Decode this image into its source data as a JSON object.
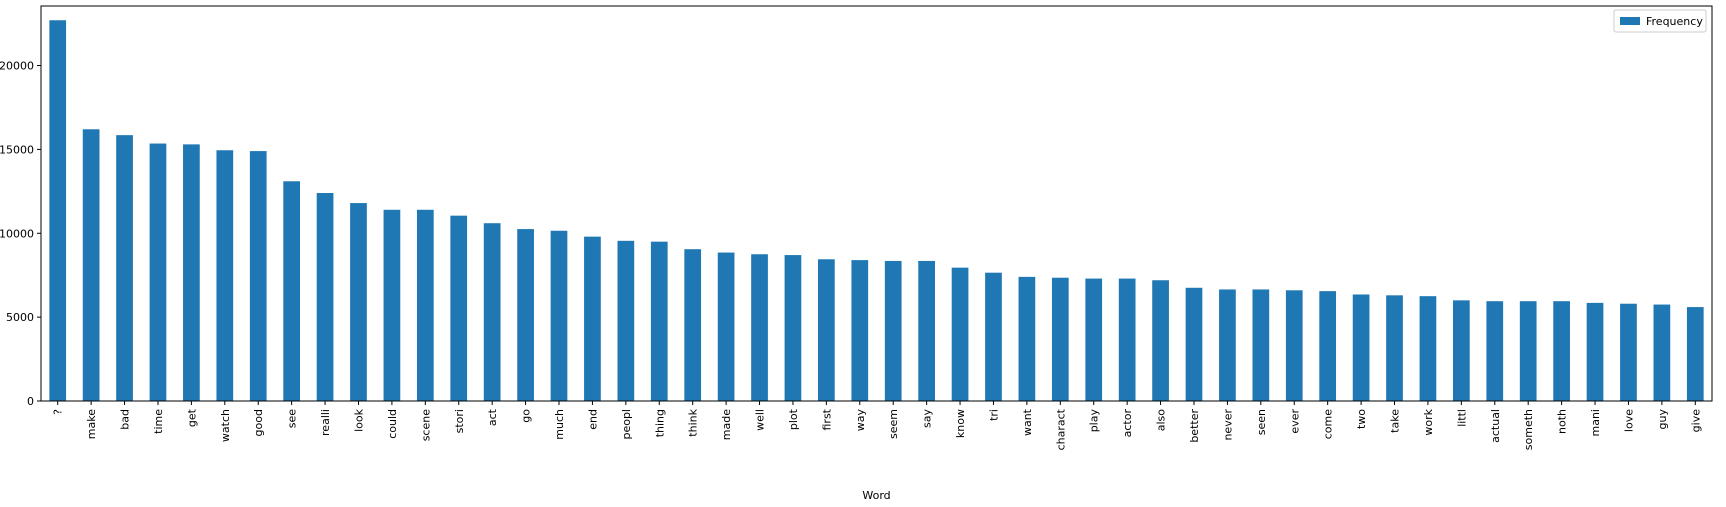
{
  "chart_data": {
    "type": "bar",
    "xlabel": "Word",
    "ylabel": "",
    "ylim": [
      0,
      23550
    ],
    "yticks": [
      0,
      5000,
      10000,
      15000,
      20000
    ],
    "grid": false,
    "legend_position": "top-right",
    "color": "#1f77b4",
    "categories": [
      "?",
      "make",
      "bad",
      "time",
      "get",
      "watch",
      "good",
      "see",
      "realli",
      "look",
      "could",
      "scene",
      "stori",
      "act",
      "go",
      "much",
      "end",
      "peopl",
      "thing",
      "think",
      "made",
      "well",
      "plot",
      "first",
      "way",
      "seem",
      "say",
      "know",
      "tri",
      "want",
      "charact",
      "play",
      "actor",
      "also",
      "better",
      "never",
      "seen",
      "ever",
      "come",
      "two",
      "take",
      "work",
      "littl",
      "actual",
      "someth",
      "noth",
      "mani",
      "love",
      "guy",
      "give"
    ],
    "series": [
      {
        "name": "Frequency",
        "values": [
          22700,
          16200,
          15850,
          15350,
          15300,
          14950,
          14900,
          13100,
          12400,
          11800,
          11400,
          11400,
          11050,
          10600,
          10250,
          10150,
          9800,
          9550,
          9500,
          9050,
          8850,
          8750,
          8700,
          8450,
          8400,
          8350,
          8350,
          7950,
          7650,
          7400,
          7350,
          7300,
          7300,
          7200,
          6750,
          6650,
          6650,
          6600,
          6550,
          6350,
          6300,
          6250,
          6000,
          5950,
          5950,
          5950,
          5850,
          5800,
          5750,
          5600
        ]
      }
    ]
  }
}
